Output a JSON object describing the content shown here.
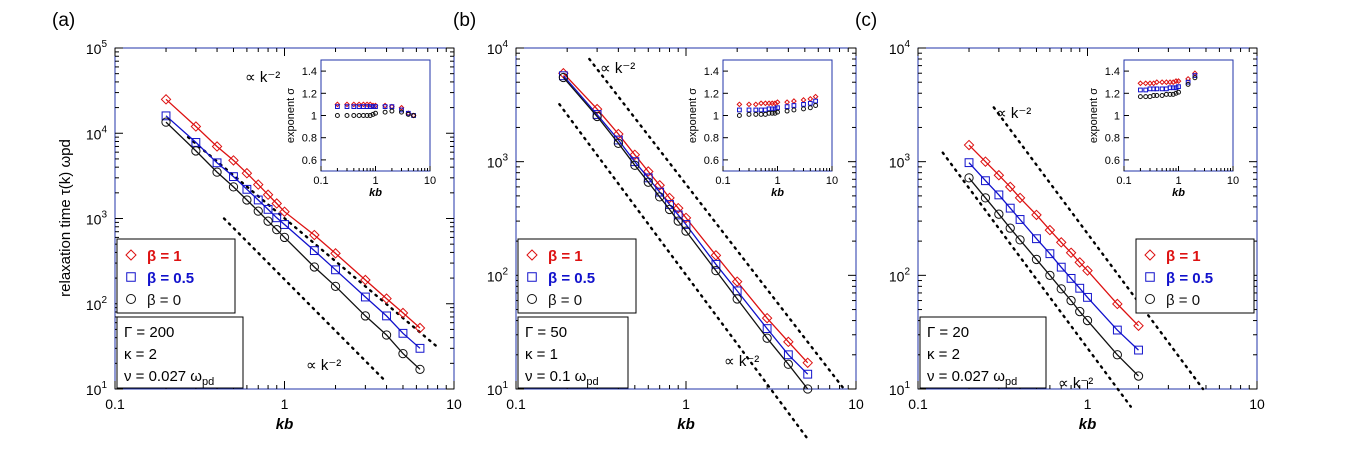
{
  "colors": {
    "axes": "#2233aa",
    "beta_1": "#dd1111",
    "beta_05": "#1111cc",
    "beta_0": "#111111"
  },
  "chart_data": [
    {
      "type": "scatter",
      "panel_label": "(a)",
      "x_scale": "log",
      "y_scale": "log",
      "xlim": [
        0.1,
        10
      ],
      "ylim": [
        10,
        100000
      ],
      "xlabel": "kb",
      "ylabel": "relaxation time  τ(k) ωpd",
      "x_ticks": [
        0.1,
        1,
        10
      ],
      "x_tick_labels": [
        "0.1",
        "1",
        "10"
      ],
      "y_ticks": [
        10,
        100,
        1000,
        10000,
        100000
      ],
      "y_tick_base": "10",
      "y_tick_exps": [
        "1",
        "2",
        "3",
        "4",
        "5"
      ],
      "legend": {
        "placement": "lower-left",
        "entries": [
          "β = 1",
          "β = 0.5",
          "β = 0"
        ]
      },
      "params": [
        "Γ = 200",
        "κ = 2",
        "ν = 0.027 ωpd"
      ],
      "annotations": [
        "∝ k⁻²",
        "∝ k⁻²"
      ],
      "series": [
        {
          "name": "β = 1",
          "marker": "diamond",
          "color": "#dd1111",
          "x": [
            0.2,
            0.3,
            0.4,
            0.5,
            0.6,
            0.7,
            0.8,
            0.9,
            1.0,
            1.5,
            2.0,
            3.0,
            4.0,
            5.0,
            6.3
          ],
          "y": [
            25000,
            12000,
            7000,
            4800,
            3400,
            2500,
            1900,
            1500,
            1200,
            640,
            390,
            190,
            115,
            78,
            52
          ]
        },
        {
          "name": "β = 0.5",
          "marker": "square",
          "color": "#1111cc",
          "x": [
            0.2,
            0.3,
            0.4,
            0.5,
            0.6,
            0.7,
            0.8,
            0.9,
            1.0,
            1.5,
            2.0,
            3.0,
            4.0,
            5.0,
            6.3
          ],
          "y": [
            16000,
            7800,
            4500,
            3100,
            2200,
            1650,
            1280,
            1020,
            850,
            420,
            250,
            120,
            72,
            45,
            30
          ]
        },
        {
          "name": "β = 0",
          "marker": "circle",
          "color": "#111111",
          "x": [
            0.2,
            0.3,
            0.4,
            0.5,
            0.6,
            0.7,
            0.8,
            0.9,
            1.0,
            1.5,
            2.0,
            3.0,
            4.0,
            5.0,
            6.3
          ],
          "y": [
            13500,
            6200,
            3500,
            2350,
            1650,
            1220,
            930,
            740,
            600,
            270,
            160,
            72,
            43,
            26,
            17
          ]
        }
      ],
      "inset": {
        "type": "scatter",
        "x_scale": "log",
        "xlim": [
          0.1,
          10
        ],
        "ylim": [
          0.5,
          1.5
        ],
        "xlabel": "kb",
        "ylabel": "exponent  σ",
        "x_ticks": [
          0.1,
          1,
          10
        ],
        "x_tick_labels": [
          "0.1",
          "1",
          "10"
        ],
        "y_ticks": [
          0.6,
          0.8,
          1.0,
          1.2,
          1.4
        ],
        "y_tick_labels": [
          "0.6",
          "0.8",
          "1",
          "1.2",
          "1.4"
        ],
        "series": [
          {
            "name": "β = 1",
            "marker": "diamond",
            "color": "#dd1111",
            "x": [
              0.2,
              0.3,
              0.4,
              0.5,
              0.6,
              0.7,
              0.8,
              0.9,
              1.0,
              1.5,
              2.0,
              3.0,
              4.0,
              5.0
            ],
            "y": [
              1.1,
              1.1,
              1.1,
              1.1,
              1.1,
              1.1,
              1.1,
              1.09,
              1.09,
              1.09,
              1.08,
              1.07,
              1.02,
              1.0
            ]
          },
          {
            "name": "β = 0.5",
            "marker": "square",
            "color": "#1111cc",
            "x": [
              0.2,
              0.3,
              0.4,
              0.5,
              0.6,
              0.7,
              0.8,
              0.9,
              1.0,
              1.5,
              2.0,
              3.0,
              4.0,
              5.0
            ],
            "y": [
              1.08,
              1.08,
              1.08,
              1.08,
              1.08,
              1.08,
              1.08,
              1.08,
              1.08,
              1.08,
              1.08,
              1.05,
              1.02,
              1.0
            ]
          },
          {
            "name": "β = 0",
            "marker": "circle",
            "color": "#111111",
            "x": [
              0.2,
              0.3,
              0.4,
              0.5,
              0.6,
              0.7,
              0.8,
              0.9,
              1.0,
              1.5,
              2.0,
              3.0,
              4.0,
              5.0
            ],
            "y": [
              1.0,
              1.0,
              1.0,
              1.0,
              1.0,
              1.0,
              1.0,
              1.01,
              1.02,
              1.03,
              1.04,
              1.03,
              1.01,
              1.0
            ]
          }
        ]
      }
    },
    {
      "type": "scatter",
      "panel_label": "(b)",
      "x_scale": "log",
      "y_scale": "log",
      "xlim": [
        0.1,
        10
      ],
      "ylim": [
        10,
        10000
      ],
      "xlabel": "kb",
      "ylabel": "",
      "x_ticks": [
        0.1,
        1,
        10
      ],
      "x_tick_labels": [
        "0.1",
        "1",
        "10"
      ],
      "y_ticks": [
        10,
        100,
        1000,
        10000
      ],
      "y_tick_base": "10",
      "y_tick_exps": [
        "1",
        "2",
        "3",
        "4"
      ],
      "legend": {
        "placement": "lower-left",
        "entries": [
          "β = 1",
          "β = 0.5",
          "β = 0"
        ]
      },
      "params": [
        "Γ = 50",
        "κ = 1",
        "ν = 0.1 ωpd"
      ],
      "annotations": [
        "∝ k⁻²",
        "∝ k⁻²"
      ],
      "series": [
        {
          "name": "β = 1",
          "marker": "diamond",
          "color": "#dd1111",
          "x": [
            0.19,
            0.3,
            0.4,
            0.5,
            0.6,
            0.7,
            0.8,
            0.9,
            1.0,
            1.5,
            2.0,
            3.0,
            4.0,
            5.2
          ],
          "y": [
            6000,
            2900,
            1750,
            1150,
            820,
            620,
            480,
            390,
            320,
            150,
            88,
            42,
            26,
            17
          ]
        },
        {
          "name": "β = 0.5",
          "marker": "square",
          "color": "#1111cc",
          "x": [
            0.19,
            0.3,
            0.4,
            0.5,
            0.6,
            0.7,
            0.8,
            0.9,
            1.0,
            1.5,
            2.0,
            3.0,
            4.0,
            5.2
          ],
          "y": [
            5700,
            2600,
            1550,
            1000,
            720,
            540,
            420,
            340,
            280,
            125,
            73,
            34,
            20,
            13.5
          ]
        },
        {
          "name": "β = 0",
          "marker": "circle",
          "color": "#111111",
          "x": [
            0.19,
            0.3,
            0.4,
            0.5,
            0.6,
            0.7,
            0.8,
            0.9,
            1.0,
            1.5,
            2.0,
            3.0,
            4.0,
            5.2
          ],
          "y": [
            5500,
            2500,
            1450,
            930,
            660,
            490,
            380,
            300,
            245,
            110,
            62,
            28,
            16.5,
            10
          ]
        }
      ],
      "inset": {
        "type": "scatter",
        "x_scale": "log",
        "xlim": [
          0.1,
          10
        ],
        "ylim": [
          0.5,
          1.5
        ],
        "xlabel": "kb",
        "ylabel": "exponent  σ",
        "x_ticks": [
          0.1,
          1,
          10
        ],
        "x_tick_labels": [
          "0.1",
          "1",
          "10"
        ],
        "y_ticks": [
          0.6,
          0.8,
          1.0,
          1.2,
          1.4
        ],
        "y_tick_labels": [
          "0.6",
          "0.8",
          "1",
          "1.2",
          "1.4"
        ],
        "series": [
          {
            "name": "β = 1",
            "marker": "diamond",
            "color": "#dd1111",
            "x": [
              0.2,
              0.3,
              0.4,
              0.5,
              0.6,
              0.7,
              0.8,
              0.9,
              1.0,
              1.5,
              2.0,
              3.0,
              4.0,
              5.0
            ],
            "y": [
              1.1,
              1.1,
              1.1,
              1.11,
              1.11,
              1.11,
              1.11,
              1.11,
              1.12,
              1.12,
              1.13,
              1.14,
              1.15,
              1.17
            ]
          },
          {
            "name": "β = 0.5",
            "marker": "square",
            "color": "#1111cc",
            "x": [
              0.2,
              0.3,
              0.4,
              0.5,
              0.6,
              0.7,
              0.8,
              0.9,
              1.0,
              1.5,
              2.0,
              3.0,
              4.0,
              5.0
            ],
            "y": [
              1.05,
              1.05,
              1.05,
              1.05,
              1.05,
              1.06,
              1.06,
              1.06,
              1.07,
              1.08,
              1.09,
              1.1,
              1.11,
              1.13
            ]
          },
          {
            "name": "β = 0",
            "marker": "circle",
            "color": "#111111",
            "x": [
              0.2,
              0.3,
              0.4,
              0.5,
              0.6,
              0.7,
              0.8,
              0.9,
              1.0,
              1.5,
              2.0,
              3.0,
              4.0,
              5.0
            ],
            "y": [
              1.0,
              1.01,
              1.01,
              1.01,
              1.01,
              1.02,
              1.02,
              1.02,
              1.03,
              1.04,
              1.05,
              1.06,
              1.07,
              1.09
            ]
          }
        ]
      }
    },
    {
      "type": "scatter",
      "panel_label": "(c)",
      "x_scale": "log",
      "y_scale": "log",
      "xlim": [
        0.1,
        10
      ],
      "ylim": [
        10,
        10000
      ],
      "xlabel": "kb",
      "ylabel": "",
      "x_ticks": [
        0.1,
        1,
        10
      ],
      "x_tick_labels": [
        "0.1",
        "1",
        "10"
      ],
      "y_ticks": [
        10,
        100,
        1000,
        10000
      ],
      "y_tick_base": "10",
      "y_tick_exps": [
        "1",
        "2",
        "3",
        "4"
      ],
      "legend": {
        "placement": "lower-right",
        "entries": [
          "β = 1",
          "β = 0.5",
          "β = 0"
        ]
      },
      "params": [
        "Γ = 20",
        "κ = 2",
        "ν = 0.027 ωpd"
      ],
      "annotations": [
        "∝ k⁻²",
        "∝ k⁻²"
      ],
      "series": [
        {
          "name": "β = 1",
          "marker": "diamond",
          "color": "#dd1111",
          "x": [
            0.2,
            0.25,
            0.3,
            0.35,
            0.4,
            0.5,
            0.6,
            0.7,
            0.8,
            0.9,
            1.0,
            1.5,
            2.0
          ],
          "y": [
            1400,
            1000,
            760,
            600,
            480,
            340,
            250,
            195,
            158,
            130,
            110,
            56,
            36
          ]
        },
        {
          "name": "β = 0.5",
          "marker": "square",
          "color": "#1111cc",
          "x": [
            0.2,
            0.25,
            0.3,
            0.35,
            0.4,
            0.5,
            0.6,
            0.7,
            0.8,
            0.9,
            1.0,
            1.5,
            2.0
          ],
          "y": [
            980,
            680,
            510,
            390,
            310,
            210,
            155,
            118,
            94,
            77,
            64,
            33,
            22
          ]
        },
        {
          "name": "β = 0",
          "marker": "circle",
          "color": "#111111",
          "x": [
            0.2,
            0.25,
            0.3,
            0.35,
            0.4,
            0.5,
            0.6,
            0.7,
            0.8,
            0.9,
            1.0,
            1.5,
            2.0
          ],
          "y": [
            720,
            480,
            345,
            260,
            205,
            138,
            100,
            76,
            60,
            48,
            40,
            20,
            13
          ]
        }
      ],
      "inset": {
        "type": "scatter",
        "x_scale": "log",
        "xlim": [
          0.1,
          10
        ],
        "ylim": [
          0.5,
          1.5
        ],
        "xlabel": "kb",
        "ylabel": "exponent  σ",
        "x_ticks": [
          0.1,
          1,
          10
        ],
        "x_tick_labels": [
          "0.1",
          "1",
          "10"
        ],
        "y_ticks": [
          0.6,
          0.8,
          1.0,
          1.2,
          1.4
        ],
        "y_tick_labels": [
          "0.6",
          "0.8",
          "1",
          "1.2",
          "1.4"
        ],
        "series": [
          {
            "name": "β = 1",
            "marker": "diamond",
            "color": "#dd1111",
            "x": [
              0.2,
              0.25,
              0.3,
              0.35,
              0.4,
              0.5,
              0.6,
              0.7,
              0.8,
              0.9,
              1.0,
              1.5,
              2.0
            ],
            "y": [
              1.29,
              1.29,
              1.29,
              1.29,
              1.3,
              1.3,
              1.3,
              1.3,
              1.3,
              1.31,
              1.31,
              1.33,
              1.38
            ]
          },
          {
            "name": "β = 0.5",
            "marker": "square",
            "color": "#1111cc",
            "x": [
              0.2,
              0.25,
              0.3,
              0.35,
              0.4,
              0.5,
              0.6,
              0.7,
              0.8,
              0.9,
              1.0,
              1.5,
              2.0
            ],
            "y": [
              1.23,
              1.23,
              1.24,
              1.24,
              1.24,
              1.24,
              1.24,
              1.25,
              1.25,
              1.25,
              1.26,
              1.3,
              1.36
            ]
          },
          {
            "name": "β = 0",
            "marker": "circle",
            "color": "#111111",
            "x": [
              0.2,
              0.25,
              0.3,
              0.35,
              0.4,
              0.5,
              0.6,
              0.7,
              0.8,
              0.9,
              1.0,
              1.5,
              2.0
            ],
            "y": [
              1.17,
              1.17,
              1.17,
              1.18,
              1.18,
              1.18,
              1.19,
              1.19,
              1.19,
              1.2,
              1.21,
              1.28,
              1.34
            ]
          }
        ]
      }
    }
  ]
}
